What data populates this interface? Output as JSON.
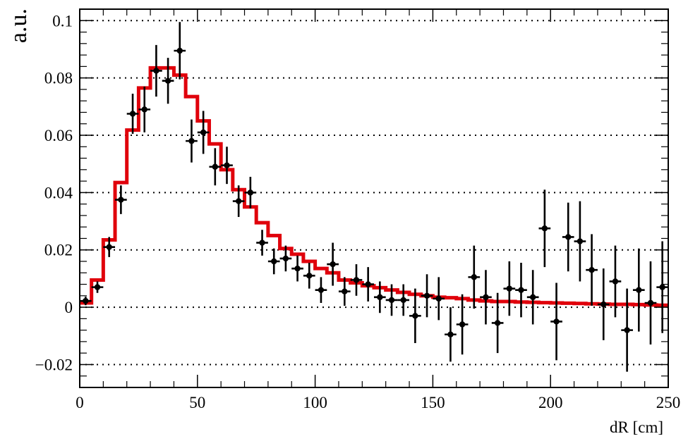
{
  "chart_data": {
    "type": "scatter",
    "title": "",
    "xlabel": "dR [cm]",
    "ylabel": "a.u.",
    "xlim": [
      0,
      250
    ],
    "ylim": [
      -0.028,
      0.104
    ],
    "x_ticks": [
      0,
      50,
      100,
      150,
      200,
      250
    ],
    "x_tick_labels": [
      "0",
      "50",
      "100",
      "150",
      "200",
      "250"
    ],
    "y_ticks": [
      -0.02,
      0,
      0.02,
      0.04,
      0.06,
      0.08,
      0.1
    ],
    "y_tick_labels": [
      "−0.02",
      "0",
      "0.02",
      "0.04",
      "0.06",
      "0.08",
      "0.1"
    ],
    "grid": "horizontal dotted at y ticks",
    "bin_width": 5,
    "series": [
      {
        "kind": "histogram",
        "color": "#e0000b",
        "bin_edges": [
          0,
          5,
          10,
          15,
          20,
          25,
          30,
          35,
          40,
          45,
          50,
          55,
          60,
          65,
          70,
          75,
          80,
          85,
          90,
          95,
          100,
          105,
          110,
          115,
          120,
          125,
          130,
          135,
          140,
          145,
          150,
          155,
          160,
          165,
          170,
          175,
          180,
          185,
          190,
          195,
          200,
          205,
          210,
          215,
          220,
          225,
          230,
          235,
          240,
          245,
          250
        ],
        "values": [
          0.0015,
          0.0095,
          0.0235,
          0.0435,
          0.0618,
          0.0765,
          0.0835,
          0.0835,
          0.081,
          0.0735,
          0.065,
          0.057,
          0.048,
          0.041,
          0.035,
          0.0295,
          0.025,
          0.0205,
          0.0185,
          0.016,
          0.0135,
          0.012,
          0.0095,
          0.0085,
          0.0075,
          0.0068,
          0.006,
          0.0052,
          0.0045,
          0.004,
          0.0035,
          0.0033,
          0.003,
          0.0025,
          0.0022,
          0.002,
          0.002,
          0.0018,
          0.0017,
          0.0016,
          0.0015,
          0.0014,
          0.0013,
          0.0012,
          0.0011,
          0.001,
          0.001,
          0.0009,
          0.0008,
          0.0007
        ]
      },
      {
        "kind": "points",
        "color": "#000000",
        "x": [
          2.5,
          7.5,
          12.5,
          17.5,
          22.5,
          27.5,
          32.5,
          37.5,
          42.5,
          47.5,
          52.5,
          57.5,
          62.5,
          67.5,
          72.5,
          77.5,
          82.5,
          87.5,
          92.5,
          97.5,
          102.5,
          107.5,
          112.5,
          117.5,
          122.5,
          127.5,
          132.5,
          137.5,
          142.5,
          147.5,
          152.5,
          157.5,
          162.5,
          167.5,
          172.5,
          177.5,
          182.5,
          187.5,
          192.5,
          197.5,
          202.5,
          207.5,
          212.5,
          217.5,
          222.5,
          227.5,
          232.5,
          237.5,
          242.5,
          247.5
        ],
        "y": [
          0.0022,
          0.007,
          0.021,
          0.0375,
          0.0675,
          0.069,
          0.0825,
          0.079,
          0.0895,
          0.058,
          0.061,
          0.049,
          0.0495,
          0.037,
          0.04,
          0.0225,
          0.016,
          0.017,
          0.0135,
          0.011,
          0.006,
          0.015,
          0.0055,
          0.0095,
          0.008,
          0.0035,
          0.0025,
          0.0025,
          -0.003,
          0.004,
          0.003,
          -0.0095,
          -0.006,
          0.0105,
          0.0035,
          -0.0055,
          0.0065,
          0.006,
          0.0035,
          0.0275,
          -0.005,
          0.0245,
          0.023,
          0.013,
          0.001,
          0.009,
          -0.008,
          0.006,
          0.0015,
          0.007
        ],
        "err": [
          0.0015,
          0.002,
          0.0035,
          0.005,
          0.007,
          0.008,
          0.009,
          0.008,
          0.01,
          0.0075,
          0.0075,
          0.0065,
          0.0065,
          0.0055,
          0.0055,
          0.0045,
          0.0045,
          0.0045,
          0.0045,
          0.0045,
          0.0045,
          0.0075,
          0.005,
          0.0055,
          0.006,
          0.0055,
          0.0055,
          0.0055,
          0.0095,
          0.0075,
          0.0075,
          0.0095,
          0.0105,
          0.011,
          0.0095,
          0.0105,
          0.0095,
          0.0095,
          0.0095,
          0.0135,
          0.0135,
          0.012,
          0.014,
          0.0125,
          0.0125,
          0.0125,
          0.0145,
          0.0145,
          0.0145,
          0.016
        ]
      }
    ]
  }
}
